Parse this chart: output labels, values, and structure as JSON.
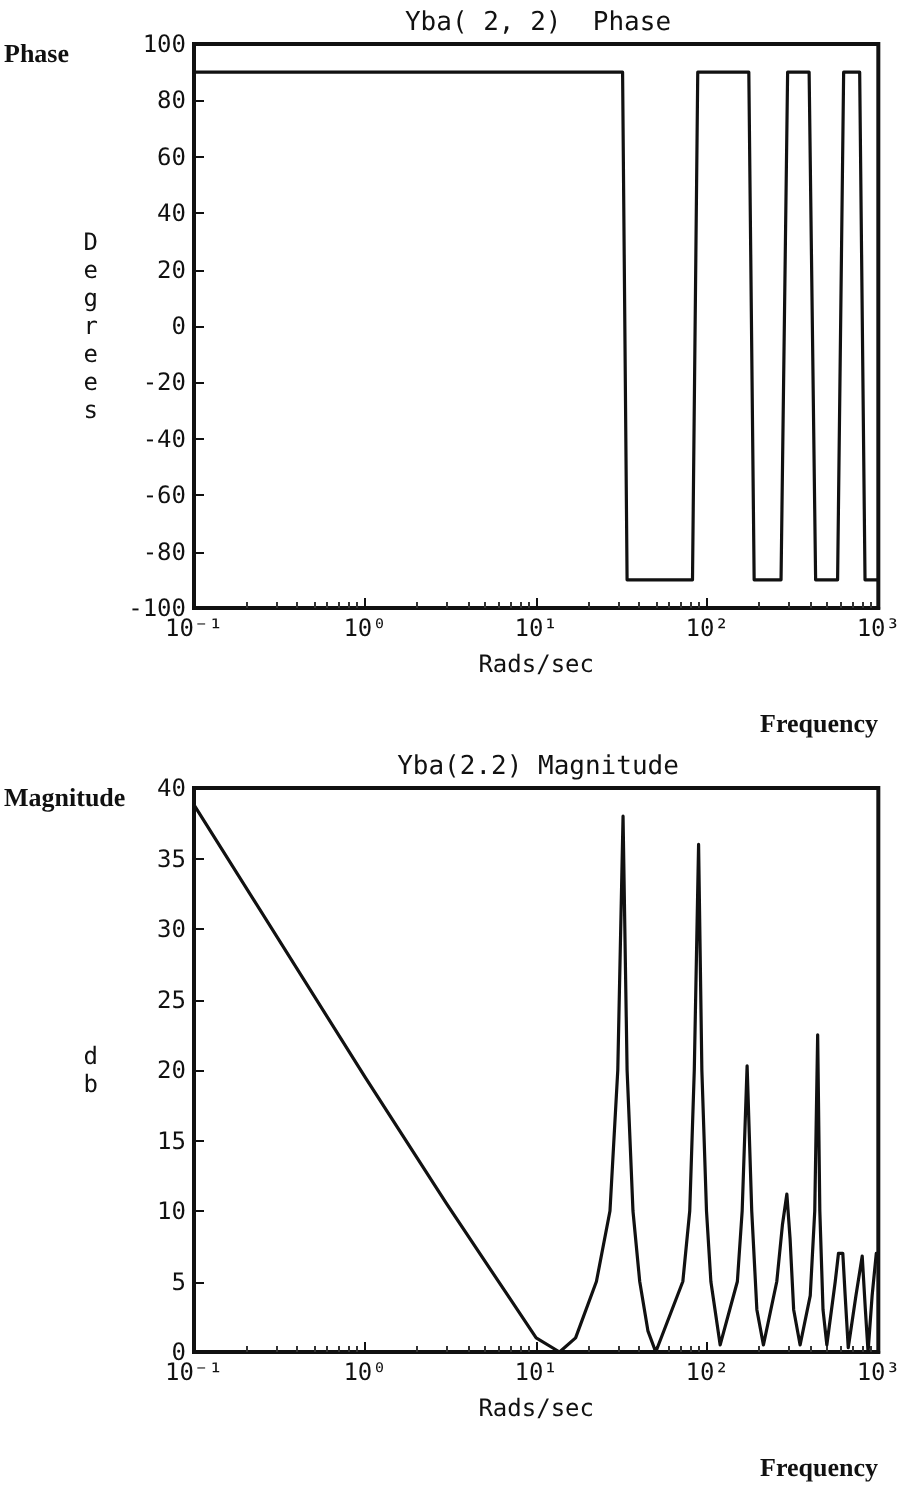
{
  "chart_data": [
    {
      "type": "line",
      "title": "Yba( 2, 2)  Phase",
      "xlabel": "Rads/sec",
      "ylabel": "Degrees",
      "annotations": [
        "Phase",
        "Frequency"
      ],
      "log": "x",
      "grid": false,
      "marker": "none",
      "line_style": "solid",
      "x": [
        0.1,
        32,
        34,
        82,
        88,
        175,
        188,
        270,
        295,
        394,
        430,
        578,
        627,
        778,
        836,
        1000
      ],
      "series": [
        {
          "color": "#111111",
          "values": [
            90,
            90,
            -90,
            -90,
            90,
            90,
            -90,
            -90,
            90,
            90,
            -90,
            -90,
            90,
            90,
            -90,
            -90
          ]
        }
      ],
      "xlim": [
        0.1,
        1000
      ],
      "xticks": [
        {
          "value": 0.1,
          "label": "10⁻¹"
        },
        {
          "value": 1,
          "label": "10⁰"
        },
        {
          "value": 10,
          "label": "10¹"
        },
        {
          "value": 100,
          "label": "10²"
        },
        {
          "value": 1000,
          "label": "10³"
        }
      ],
      "ylim": [
        -100,
        100
      ],
      "yticks": [
        -100,
        -80,
        -60,
        -40,
        -20,
        0,
        20,
        40,
        60,
        80,
        100
      ]
    },
    {
      "type": "line",
      "title": "Yba(2.2) Magnitude",
      "xlabel": "Rads/sec",
      "ylabel": "db",
      "annotations": [
        "Magnitude",
        "Frequency"
      ],
      "log": "x",
      "grid": false,
      "marker": "none",
      "line_style": "solid",
      "x": [
        0.1,
        1,
        3,
        10,
        13.7,
        17,
        22.5,
        27,
        30,
        32.2,
        34,
        36.8,
        40.3,
        45,
        50,
        72,
        79,
        84,
        89,
        93,
        99,
        105,
        119,
        150,
        160,
        171,
        182,
        195,
        213,
        255,
        275,
        292,
        305,
        320,
        349,
        400,
        425,
        442,
        455,
        475,
        500,
        560,
        585,
        620,
        640,
        667,
        740,
        805,
        840,
        871,
        920,
        973,
        1000
      ],
      "series": [
        {
          "color": "#111111",
          "values": [
            38.8,
            19.5,
            10.5,
            1,
            0,
            1,
            5,
            10,
            20,
            38,
            20,
            10,
            5,
            1.5,
            0,
            5,
            10,
            20,
            36,
            20,
            10,
            5,
            0.5,
            5,
            10,
            20.3,
            10,
            3,
            0.5,
            5,
            9,
            11.2,
            8,
            3,
            0.5,
            4,
            10,
            22.5,
            10,
            3,
            0.5,
            5,
            7,
            7,
            4,
            0.3,
            4,
            6.8,
            3,
            0,
            4,
            7,
            7
          ]
        }
      ],
      "xlim": [
        0.1,
        1000
      ],
      "xticks": [
        {
          "value": 0.1,
          "label": "10⁻¹"
        },
        {
          "value": 1,
          "label": "10⁰"
        },
        {
          "value": 10,
          "label": "10¹"
        },
        {
          "value": 100,
          "label": "10²"
        },
        {
          "value": 1000,
          "label": "10³"
        }
      ],
      "ylim": [
        0,
        40
      ],
      "yticks": [
        0,
        5,
        10,
        15,
        20,
        25,
        30,
        35,
        40
      ]
    }
  ]
}
